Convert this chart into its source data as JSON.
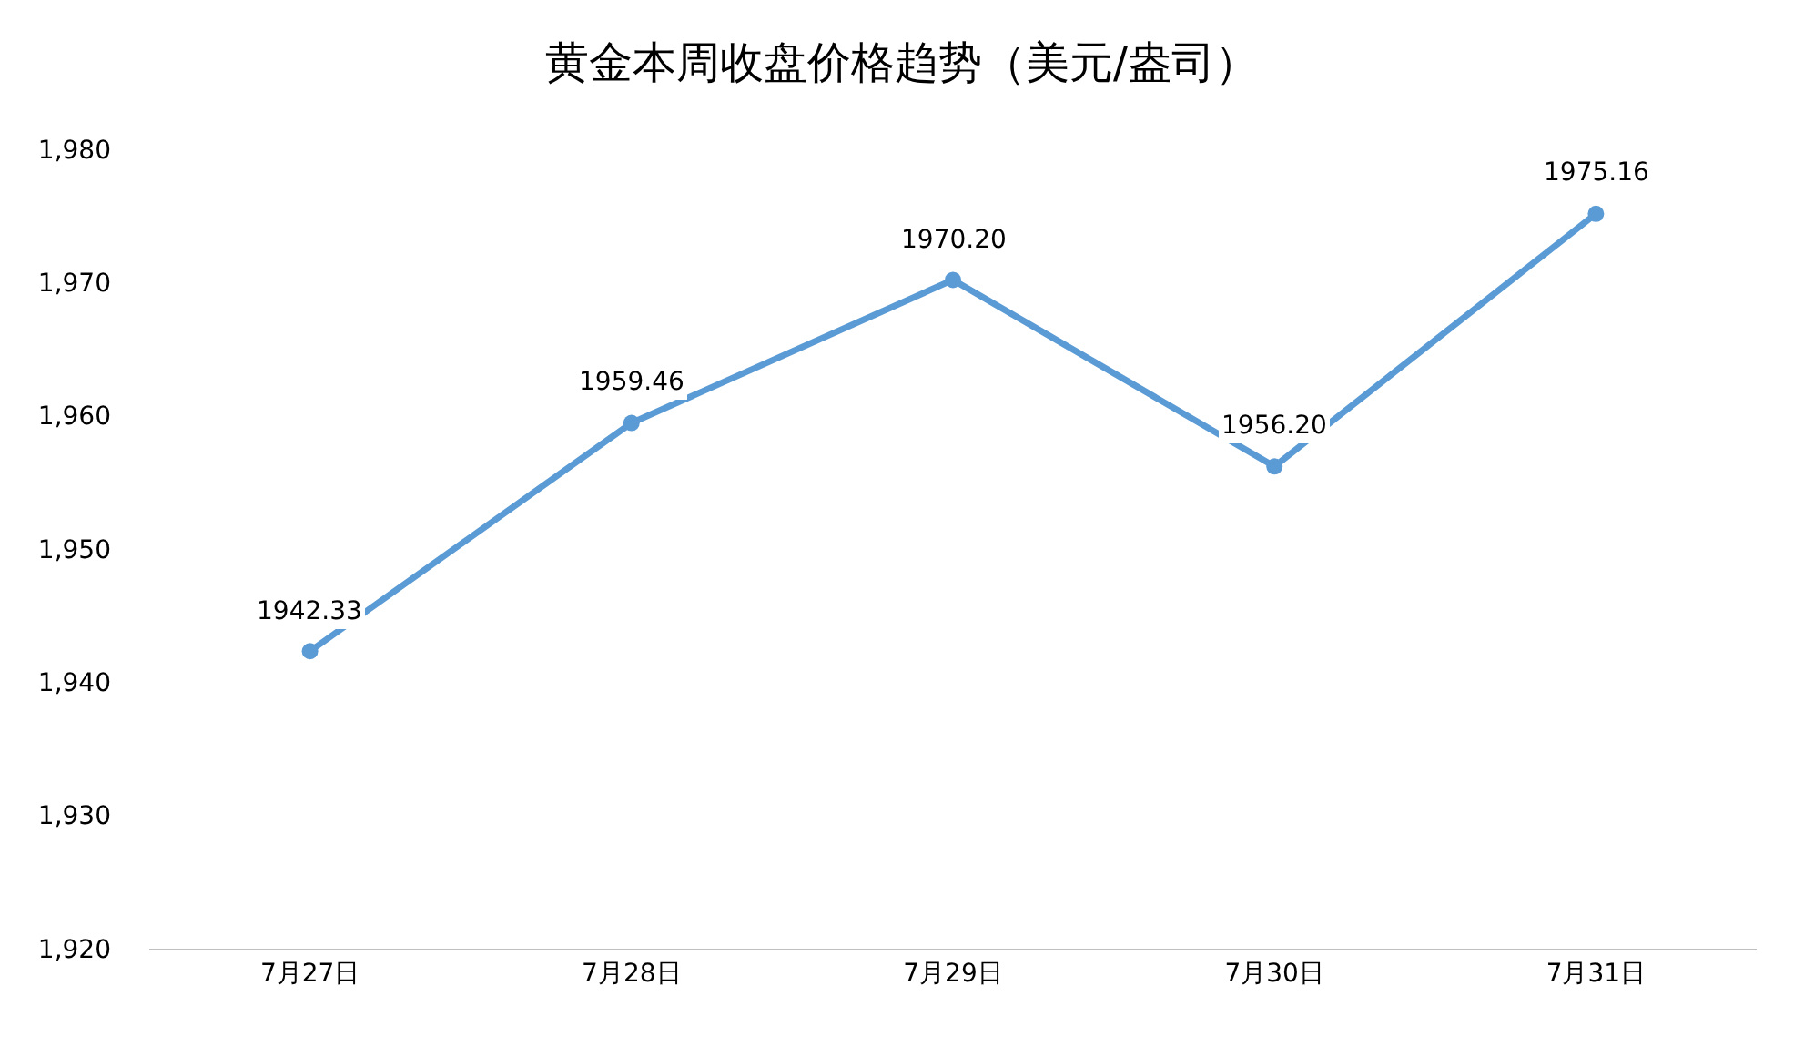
{
  "chart_data": {
    "type": "line",
    "title": "黄金本周收盘价格趋势（美元/盎司）",
    "categories": [
      "7月27日",
      "7月28日",
      "7月29日",
      "7月30日",
      "7月31日"
    ],
    "values": [
      1942.33,
      1959.46,
      1970.2,
      1956.2,
      1975.16
    ],
    "value_labels": [
      "1942.33",
      "1959.46",
      "1970.20",
      "1956.20",
      "1975.16"
    ],
    "color": "#5b9bd5",
    "marker": "circle",
    "line_style": "solid",
    "grid": false,
    "legend": false,
    "ylim": [
      1920,
      1980
    ],
    "yticks": [
      {
        "value": 1920,
        "label": "1,920"
      },
      {
        "value": 1930,
        "label": "1,930"
      },
      {
        "value": 1940,
        "label": "1,940"
      },
      {
        "value": 1950,
        "label": "1,950"
      },
      {
        "value": 1960,
        "label": "1,960"
      },
      {
        "value": 1970,
        "label": "1,970"
      },
      {
        "value": 1980,
        "label": "1,980"
      }
    ]
  }
}
